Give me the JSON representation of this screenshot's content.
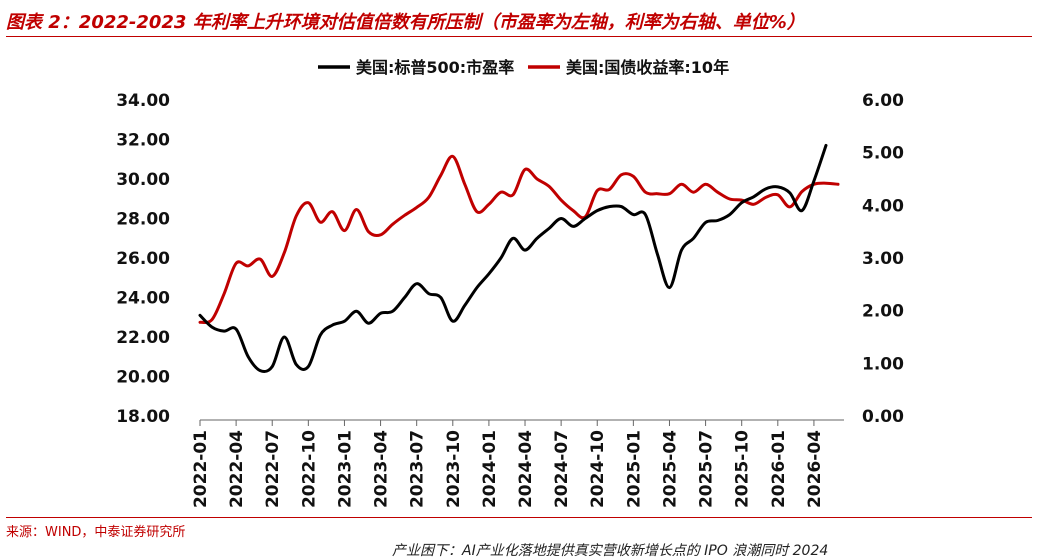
{
  "figure": {
    "title": "图表 2：2022-2023 年利率上升环境对估值倍数有所压制（市盈率为左轴，利率为右轴、单位%）",
    "source": "来源：WIND，中泰证券研究所",
    "footer_note": "产业困下：AI产业化落地提供真实营收新增长点的 IPO 浪潮同时 2024"
  },
  "chart_data": {
    "type": "line",
    "legend_position": "top-center",
    "grid": false,
    "x_tick_labels": [
      "2022-01",
      "2022-04",
      "2022-07",
      "2022-10",
      "2023-01",
      "2023-04",
      "2023-07",
      "2023-10",
      "2024-01",
      "2024-04",
      "2024-07",
      "2024-10",
      "2025-01",
      "2025-04",
      "2025-07",
      "2025-10",
      "2026-01",
      "2026-04"
    ],
    "y_left": {
      "min": 18,
      "max": 34,
      "step": 2,
      "tick_labels": [
        "18.00",
        "20.00",
        "22.00",
        "24.00",
        "26.00",
        "28.00",
        "30.00",
        "32.00",
        "34.00"
      ]
    },
    "y_right": {
      "min": 0,
      "max": 6,
      "step": 1,
      "tick_labels": [
        "0.00",
        "1.00",
        "2.00",
        "3.00",
        "4.00",
        "5.00",
        "6.00"
      ]
    },
    "series": [
      {
        "name": "美国:标普500:市盈率",
        "axis": "left",
        "color": "#000000",
        "points": [
          [
            "2022-01",
            23.1
          ],
          [
            "2022-02",
            22.5
          ],
          [
            "2022-03",
            22.3
          ],
          [
            "2022-04",
            22.4
          ],
          [
            "2022-05",
            21.0
          ],
          [
            "2022-06",
            20.3
          ],
          [
            "2022-07",
            20.5
          ],
          [
            "2022-08",
            22.0
          ],
          [
            "2022-09",
            20.6
          ],
          [
            "2022-10",
            20.5
          ],
          [
            "2022-11",
            22.1
          ],
          [
            "2022-12",
            22.6
          ],
          [
            "2023-01",
            22.8
          ],
          [
            "2023-02",
            23.3
          ],
          [
            "2023-03",
            22.7
          ],
          [
            "2023-04",
            23.2
          ],
          [
            "2023-05",
            23.3
          ],
          [
            "2023-06",
            24.0
          ],
          [
            "2023-07",
            24.7
          ],
          [
            "2023-08",
            24.2
          ],
          [
            "2023-09",
            24.0
          ],
          [
            "2023-10",
            22.8
          ],
          [
            "2023-11",
            23.6
          ],
          [
            "2023-12",
            24.5
          ],
          [
            "2024-01",
            25.2
          ],
          [
            "2024-02",
            26.0
          ],
          [
            "2024-03",
            27.0
          ],
          [
            "2024-04",
            26.4
          ],
          [
            "2024-05",
            27.0
          ],
          [
            "2024-06",
            27.5
          ],
          [
            "2024-07",
            28.0
          ],
          [
            "2024-08",
            27.6
          ],
          [
            "2024-09",
            28.0
          ],
          [
            "2024-10",
            28.4
          ],
          [
            "2024-11",
            28.6
          ],
          [
            "2024-12",
            28.6
          ],
          [
            "2025-01",
            28.2
          ],
          [
            "2025-02",
            28.2
          ],
          [
            "2025-03",
            26.2
          ],
          [
            "2025-04",
            24.5
          ],
          [
            "2025-05",
            26.4
          ],
          [
            "2025-06",
            27.0
          ],
          [
            "2025-07",
            27.8
          ],
          [
            "2025-08",
            27.9
          ],
          [
            "2025-09",
            28.2
          ],
          [
            "2025-10",
            28.8
          ],
          [
            "2025-11",
            29.1
          ],
          [
            "2025-12",
            29.5
          ],
          [
            "2026-01",
            29.6
          ],
          [
            "2026-02",
            29.3
          ],
          [
            "2026-03",
            28.4
          ],
          [
            "2026-04",
            29.9
          ],
          [
            "2026-05",
            31.7
          ]
        ]
      },
      {
        "name": "美国:国债收益率:10年",
        "axis": "right",
        "color": "#c00000",
        "points": [
          [
            "2022-01",
            1.78
          ],
          [
            "2022-02",
            1.83
          ],
          [
            "2022-03",
            2.32
          ],
          [
            "2022-04",
            2.9
          ],
          [
            "2022-05",
            2.85
          ],
          [
            "2022-06",
            2.98
          ],
          [
            "2022-07",
            2.65
          ],
          [
            "2022-08",
            3.1
          ],
          [
            "2022-09",
            3.8
          ],
          [
            "2022-10",
            4.05
          ],
          [
            "2022-11",
            3.68
          ],
          [
            "2022-12",
            3.88
          ],
          [
            "2023-01",
            3.52
          ],
          [
            "2023-02",
            3.92
          ],
          [
            "2023-03",
            3.5
          ],
          [
            "2023-04",
            3.44
          ],
          [
            "2023-05",
            3.64
          ],
          [
            "2023-06",
            3.81
          ],
          [
            "2023-07",
            3.96
          ],
          [
            "2023-08",
            4.15
          ],
          [
            "2023-09",
            4.57
          ],
          [
            "2023-10",
            4.93
          ],
          [
            "2023-11",
            4.4
          ],
          [
            "2023-12",
            3.88
          ],
          [
            "2024-01",
            4.02
          ],
          [
            "2024-02",
            4.25
          ],
          [
            "2024-03",
            4.2
          ],
          [
            "2024-04",
            4.68
          ],
          [
            "2024-05",
            4.5
          ],
          [
            "2024-06",
            4.36
          ],
          [
            "2024-07",
            4.1
          ],
          [
            "2024-08",
            3.9
          ],
          [
            "2024-09",
            3.78
          ],
          [
            "2024-10",
            4.28
          ],
          [
            "2024-11",
            4.3
          ],
          [
            "2024-12",
            4.58
          ],
          [
            "2025-01",
            4.55
          ],
          [
            "2025-02",
            4.25
          ],
          [
            "2025-03",
            4.22
          ],
          [
            "2025-04",
            4.22
          ],
          [
            "2025-05",
            4.4
          ],
          [
            "2025-06",
            4.25
          ],
          [
            "2025-07",
            4.4
          ],
          [
            "2025-08",
            4.25
          ],
          [
            "2025-09",
            4.12
          ],
          [
            "2025-10",
            4.1
          ],
          [
            "2025-11",
            4.02
          ],
          [
            "2025-12",
            4.15
          ],
          [
            "2026-01",
            4.2
          ],
          [
            "2026-02",
            3.97
          ],
          [
            "2026-03",
            4.26
          ],
          [
            "2026-04",
            4.4
          ],
          [
            "2026-05",
            4.42
          ],
          [
            "2026-06",
            4.4
          ]
        ]
      }
    ]
  }
}
